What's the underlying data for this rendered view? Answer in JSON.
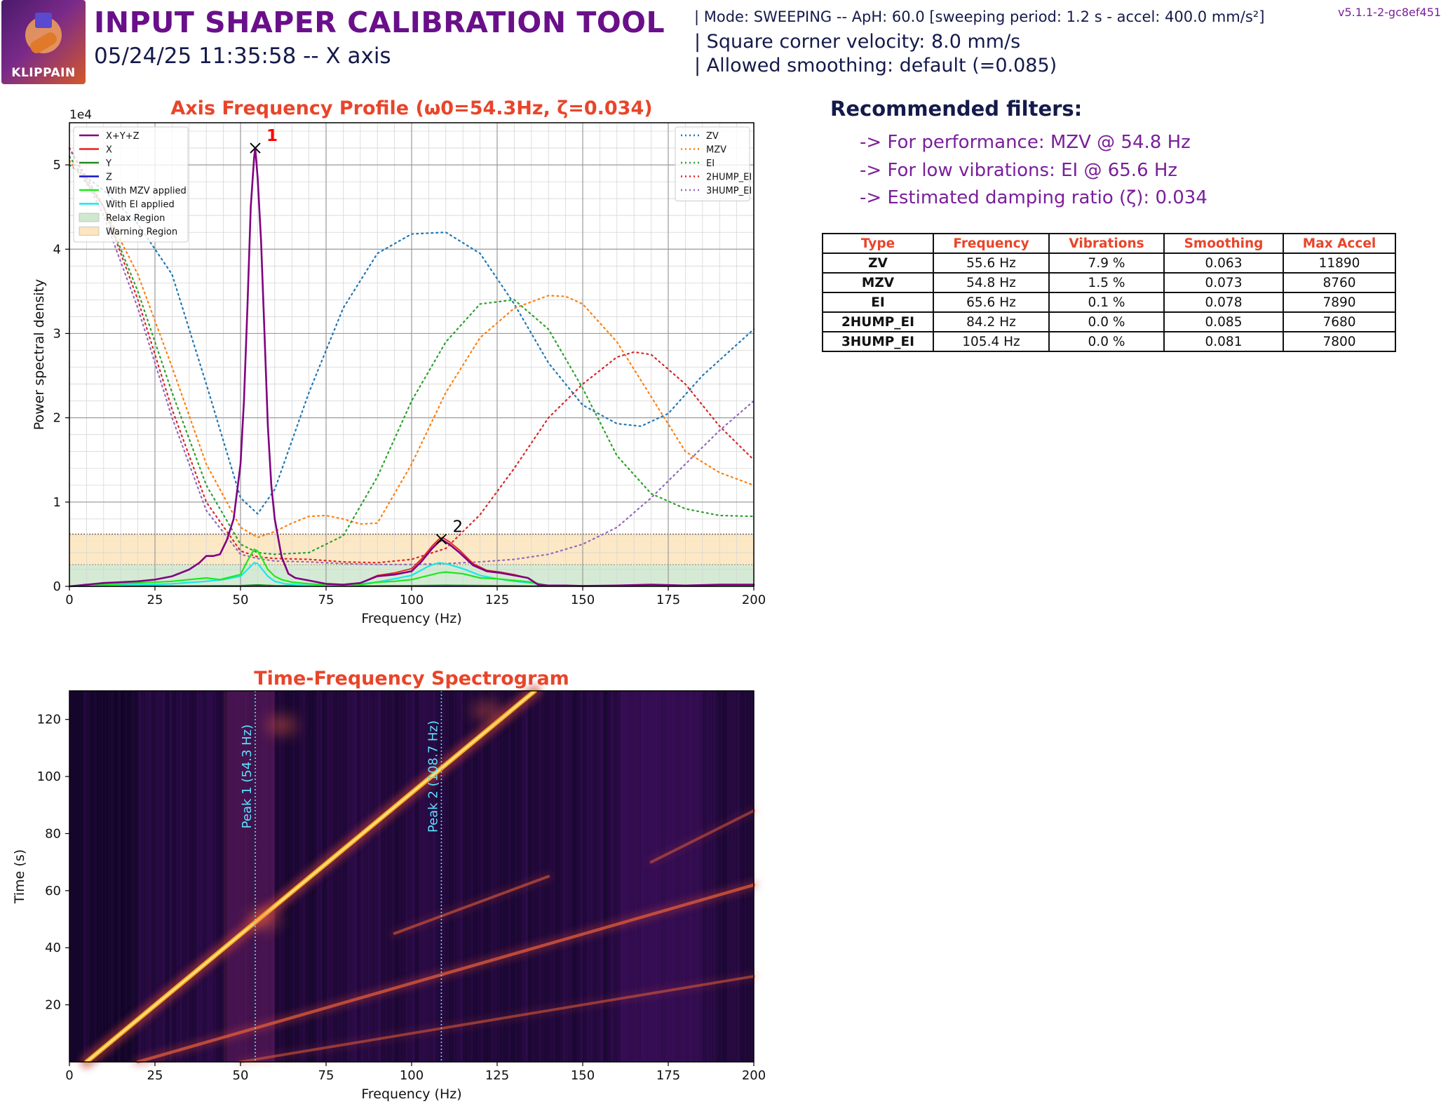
{
  "header": {
    "title": "INPUT SHAPER CALIBRATION TOOL",
    "subtitle": "05/24/25 11:35:58 -- X axis",
    "logo_text": "KLIPPAIN",
    "mode": "| Mode: SWEEPING -- ApH: 60.0 [sweeping period: 1.2 s - accel: 400.0 mm/s²]",
    "square_corner_velocity": "| Square corner velocity: 8.0 mm/s",
    "allowed_smoothing": "| Allowed smoothing: default (=0.085)",
    "version": "v5.1.1-2-gc8ef451"
  },
  "recommendations": {
    "title": "Recommended filters:",
    "lines": [
      "-> For performance: MZV @ 54.8 Hz",
      "-> For low vibrations: EI @ 65.6 Hz",
      "-> Estimated damping ratio (ζ): 0.034"
    ]
  },
  "table": {
    "headers": [
      "Type",
      "Frequency",
      "Vibrations",
      "Smoothing",
      "Max Accel"
    ],
    "rows": [
      [
        "ZV",
        "55.6 Hz",
        "7.9 %",
        "0.063",
        "11890"
      ],
      [
        "MZV",
        "54.8 Hz",
        "1.5 %",
        "0.073",
        "8760"
      ],
      [
        "EI",
        "65.6 Hz",
        "0.1 %",
        "0.078",
        "7890"
      ],
      [
        "2HUMP_EI",
        "84.2 Hz",
        "0.0 %",
        "0.085",
        "7680"
      ],
      [
        "3HUMP_EI",
        "105.4 Hz",
        "0.0 %",
        "0.081",
        "7800"
      ]
    ]
  },
  "colors": {
    "title_purple": "#6a0f8a",
    "chart_title_red": "#e8452a",
    "text_navy": "#141a4a",
    "reco_purple": "#7a1f9a"
  },
  "chart_data": [
    {
      "type": "line",
      "title": "Axis Frequency Profile (ω0=54.3Hz, ζ=0.034)",
      "xlabel": "Frequency (Hz)",
      "ylabel": "Power spectral density",
      "y_scale_label": "1e4",
      "xlim": [
        0,
        200
      ],
      "ylim": [
        0,
        5.5
      ],
      "xticks": [
        0,
        25,
        50,
        75,
        100,
        125,
        150,
        175,
        200
      ],
      "yticks": [
        0,
        1,
        2,
        3,
        4,
        5
      ],
      "grid": true,
      "regions": [
        {
          "name": "Relax Region",
          "y0": 0,
          "y1": 0.26,
          "color": "#cfe8cf"
        },
        {
          "name": "Warning Region",
          "y0": 0.26,
          "y1": 0.62,
          "color": "#fde5c0"
        }
      ],
      "peaks": [
        {
          "label": "1",
          "x": 54.3,
          "y": 5.2,
          "color": "#ff0000"
        },
        {
          "label": "2",
          "x": 108.7,
          "y": 0.56,
          "color": "#000000"
        }
      ],
      "legend_left": {
        "placement": "top-left",
        "entries": [
          "X+Y+Z",
          "X",
          "Y",
          "Z",
          "With MZV applied",
          "With EI applied",
          "Relax Region",
          "Warning Region"
        ]
      },
      "legend_right": {
        "placement": "top-right",
        "entries": [
          "ZV",
          "MZV",
          "EI",
          "2HUMP_EI",
          "3HUMP_EI"
        ]
      },
      "series": [
        {
          "name": "X+Y+Z",
          "color": "#800080",
          "style": "solid",
          "width": 2.6,
          "x": [
            0,
            5,
            10,
            15,
            20,
            25,
            30,
            35,
            38,
            40,
            42,
            44,
            46,
            48,
            50,
            51,
            52,
            53,
            54,
            54.3,
            55,
            56,
            57,
            58,
            59,
            60,
            62,
            64,
            66,
            70,
            75,
            80,
            85,
            90,
            95,
            100,
            103,
            106,
            108,
            109,
            111,
            114,
            118,
            122,
            126,
            130,
            134,
            137,
            140,
            145,
            150,
            160,
            170,
            180,
            190,
            200
          ],
          "y": [
            0,
            0.02,
            0.04,
            0.05,
            0.06,
            0.08,
            0.12,
            0.2,
            0.28,
            0.36,
            0.36,
            0.38,
            0.55,
            0.8,
            1.45,
            2.2,
            3.3,
            4.5,
            5.1,
            5.2,
            4.85,
            4.1,
            3.0,
            1.9,
            1.2,
            0.8,
            0.35,
            0.15,
            0.1,
            0.07,
            0.03,
            0.02,
            0.04,
            0.12,
            0.14,
            0.18,
            0.3,
            0.45,
            0.53,
            0.55,
            0.5,
            0.4,
            0.25,
            0.18,
            0.16,
            0.13,
            0.1,
            0.02,
            0.01,
            0.01,
            0.005,
            0.01,
            0.02,
            0.01,
            0.02,
            0.02
          ]
        },
        {
          "name": "X",
          "color": "#e8201c",
          "style": "solid",
          "width": 1.8,
          "x": [
            0,
            5,
            10,
            15,
            20,
            25,
            30,
            35,
            38,
            40,
            42,
            44,
            46,
            48,
            50,
            51,
            52,
            53,
            54,
            54.3,
            55,
            56,
            57,
            58,
            59,
            60,
            62,
            64,
            66,
            70,
            75,
            80,
            85,
            90,
            95,
            100,
            103,
            106,
            108,
            109,
            111,
            114,
            118,
            122,
            126,
            130,
            134,
            137,
            140,
            145,
            150,
            160,
            170,
            180,
            190,
            200
          ],
          "y": [
            0,
            0.02,
            0.04,
            0.05,
            0.06,
            0.08,
            0.12,
            0.2,
            0.28,
            0.36,
            0.36,
            0.38,
            0.55,
            0.8,
            1.45,
            2.2,
            3.3,
            4.5,
            5.1,
            5.2,
            4.85,
            4.1,
            3.0,
            1.9,
            1.2,
            0.8,
            0.35,
            0.15,
            0.1,
            0.07,
            0.03,
            0.02,
            0.04,
            0.13,
            0.16,
            0.21,
            0.33,
            0.48,
            0.56,
            0.58,
            0.53,
            0.43,
            0.27,
            0.19,
            0.17,
            0.14,
            0.1,
            0.02,
            0.01,
            0.01,
            0.005,
            0.01,
            0.02,
            0.01,
            0.02,
            0.02
          ]
        },
        {
          "name": "Y",
          "color": "#228b22",
          "style": "solid",
          "width": 1.5,
          "x": [
            0,
            25,
            50,
            55,
            60,
            75,
            100,
            110,
            125,
            140,
            200
          ],
          "y": [
            0,
            0.005,
            0.01,
            0.02,
            0.01,
            0.005,
            0.01,
            0.015,
            0.01,
            0.005,
            0.005
          ]
        },
        {
          "name": "Z",
          "color": "#1515c8",
          "style": "solid",
          "width": 1.5,
          "x": [
            0,
            25,
            50,
            55,
            60,
            75,
            100,
            110,
            125,
            140,
            200
          ],
          "y": [
            0,
            0.004,
            0.008,
            0.015,
            0.008,
            0.004,
            0.008,
            0.01,
            0.008,
            0.004,
            0.004
          ]
        },
        {
          "name": "With MZV applied",
          "color": "#1ee81e",
          "style": "solid",
          "width": 2.2,
          "x": [
            0,
            10,
            20,
            30,
            35,
            40,
            42,
            44,
            46,
            48,
            50,
            52,
            54,
            55,
            56,
            58,
            60,
            62,
            65,
            70,
            75,
            80,
            85,
            90,
            95,
            100,
            105,
            108,
            110,
            115,
            120,
            125,
            130,
            135,
            140,
            150,
            200
          ],
          "y": [
            0,
            0.02,
            0.04,
            0.06,
            0.08,
            0.1,
            0.09,
            0.08,
            0.1,
            0.12,
            0.14,
            0.3,
            0.44,
            0.42,
            0.35,
            0.2,
            0.12,
            0.08,
            0.05,
            0.03,
            0.02,
            0.01,
            0.02,
            0.05,
            0.06,
            0.08,
            0.13,
            0.16,
            0.17,
            0.15,
            0.1,
            0.09,
            0.07,
            0.05,
            0.01,
            0.005,
            0.005
          ]
        },
        {
          "name": "With EI applied",
          "color": "#18e8e8",
          "style": "solid",
          "width": 2.2,
          "x": [
            0,
            10,
            20,
            30,
            40,
            45,
            50,
            52,
            54,
            55,
            56,
            58,
            60,
            63,
            66,
            70,
            80,
            90,
            95,
            100,
            105,
            108,
            110,
            115,
            120,
            125,
            130,
            135,
            140,
            150,
            200
          ],
          "y": [
            0,
            0.01,
            0.02,
            0.03,
            0.06,
            0.08,
            0.12,
            0.2,
            0.28,
            0.27,
            0.22,
            0.12,
            0.06,
            0.03,
            0.02,
            0.01,
            0.01,
            0.05,
            0.09,
            0.13,
            0.24,
            0.28,
            0.27,
            0.21,
            0.13,
            0.09,
            0.06,
            0.04,
            0.01,
            0.005,
            0.005
          ]
        },
        {
          "name": "ZV",
          "color": "#1f77b4",
          "style": "dotted",
          "width": 2.2,
          "x": [
            0,
            10,
            20,
            30,
            40,
            50,
            55,
            60,
            70,
            80,
            90,
            100,
            110,
            120,
            130,
            140,
            150,
            160,
            167,
            175,
            185,
            200
          ],
          "y": [
            5.0,
            4.7,
            4.3,
            3.7,
            2.4,
            1.05,
            0.86,
            1.15,
            2.3,
            3.3,
            3.95,
            4.18,
            4.2,
            3.95,
            3.35,
            2.65,
            2.15,
            1.93,
            1.9,
            2.05,
            2.5,
            3.05
          ]
        },
        {
          "name": "MZV",
          "color": "#ff7f0e",
          "style": "dotted",
          "width": 2.2,
          "x": [
            0,
            10,
            20,
            30,
            40,
            50,
            55,
            60,
            65,
            70,
            75,
            80,
            85,
            90,
            100,
            110,
            120,
            130,
            140,
            145,
            150,
            160,
            170,
            180,
            190,
            200
          ],
          "y": [
            5.05,
            4.5,
            3.7,
            2.6,
            1.45,
            0.7,
            0.58,
            0.65,
            0.75,
            0.83,
            0.84,
            0.8,
            0.74,
            0.75,
            1.45,
            2.3,
            2.95,
            3.3,
            3.45,
            3.44,
            3.35,
            2.9,
            2.25,
            1.6,
            1.35,
            1.2
          ]
        },
        {
          "name": "EI",
          "color": "#2ca02c",
          "style": "dotted",
          "width": 2.2,
          "x": [
            0,
            10,
            20,
            30,
            40,
            50,
            55,
            60,
            70,
            80,
            90,
            100,
            110,
            120,
            130,
            140,
            150,
            160,
            170,
            180,
            190,
            200
          ],
          "y": [
            5.1,
            4.5,
            3.5,
            2.3,
            1.2,
            0.5,
            0.4,
            0.38,
            0.4,
            0.6,
            1.3,
            2.2,
            2.9,
            3.35,
            3.4,
            3.05,
            2.35,
            1.55,
            1.1,
            0.92,
            0.84,
            0.83
          ]
        },
        {
          "name": "2HUMP_EI",
          "color": "#d62728",
          "style": "dotted",
          "width": 2.2,
          "x": [
            0,
            10,
            20,
            30,
            40,
            50,
            55,
            60,
            70,
            80,
            90,
            100,
            110,
            120,
            130,
            140,
            150,
            160,
            165,
            170,
            180,
            190,
            200
          ],
          "y": [
            5.2,
            4.5,
            3.4,
            2.1,
            1.0,
            0.42,
            0.35,
            0.33,
            0.32,
            0.29,
            0.28,
            0.32,
            0.45,
            0.85,
            1.4,
            2.0,
            2.4,
            2.72,
            2.78,
            2.75,
            2.4,
            1.9,
            1.5
          ]
        },
        {
          "name": "3HUMP_EI",
          "color": "#9467bd",
          "style": "dotted",
          "width": 2.2,
          "x": [
            0,
            10,
            20,
            30,
            40,
            50,
            55,
            60,
            70,
            80,
            90,
            100,
            110,
            120,
            130,
            140,
            150,
            160,
            170,
            180,
            190,
            200
          ],
          "y": [
            5.2,
            4.4,
            3.3,
            2.0,
            0.9,
            0.38,
            0.33,
            0.3,
            0.29,
            0.27,
            0.26,
            0.26,
            0.27,
            0.29,
            0.32,
            0.38,
            0.5,
            0.7,
            1.05,
            1.45,
            1.85,
            2.2
          ]
        }
      ]
    },
    {
      "type": "heatmap",
      "title": "Time-Frequency Spectrogram",
      "xlabel": "Frequency (Hz)",
      "ylabel": "Time (s)",
      "xlim": [
        0,
        200
      ],
      "ylim": [
        0,
        130
      ],
      "xticks": [
        0,
        25,
        50,
        75,
        100,
        125,
        150,
        175,
        200
      ],
      "yticks": [
        20,
        40,
        60,
        80,
        100,
        120
      ],
      "colormap": "inferno",
      "peak_lines": [
        {
          "label": "Peak 1 (54.3 Hz)",
          "x": 54.3,
          "color": "#5ee0ff"
        },
        {
          "label": "Peak 2 (108.7 Hz)",
          "x": 108.7,
          "color": "#5ee0ff"
        }
      ],
      "streaks": [
        {
          "from": [
            5,
            0
          ],
          "to": [
            136,
            130
          ],
          "intensity": 1.0,
          "width": 3.2
        },
        {
          "from": [
            20,
            0
          ],
          "to": [
            200,
            62
          ],
          "intensity": 0.6,
          "width": 1.8
        },
        {
          "from": [
            50,
            0
          ],
          "to": [
            200,
            30
          ],
          "intensity": 0.3,
          "width": 1.4
        },
        {
          "from": [
            95,
            45
          ],
          "to": [
            140,
            65
          ],
          "intensity": 0.35,
          "width": 1.5
        },
        {
          "from": [
            170,
            70
          ],
          "to": [
            200,
            88
          ],
          "intensity": 0.25,
          "width": 1.5
        }
      ],
      "hotspots": [
        {
          "x": 62,
          "y": 118,
          "intensity": 0.45
        },
        {
          "x": 122,
          "y": 123,
          "intensity": 0.4
        },
        {
          "x": 57,
          "y": 50,
          "intensity": 0.5
        }
      ]
    }
  ]
}
